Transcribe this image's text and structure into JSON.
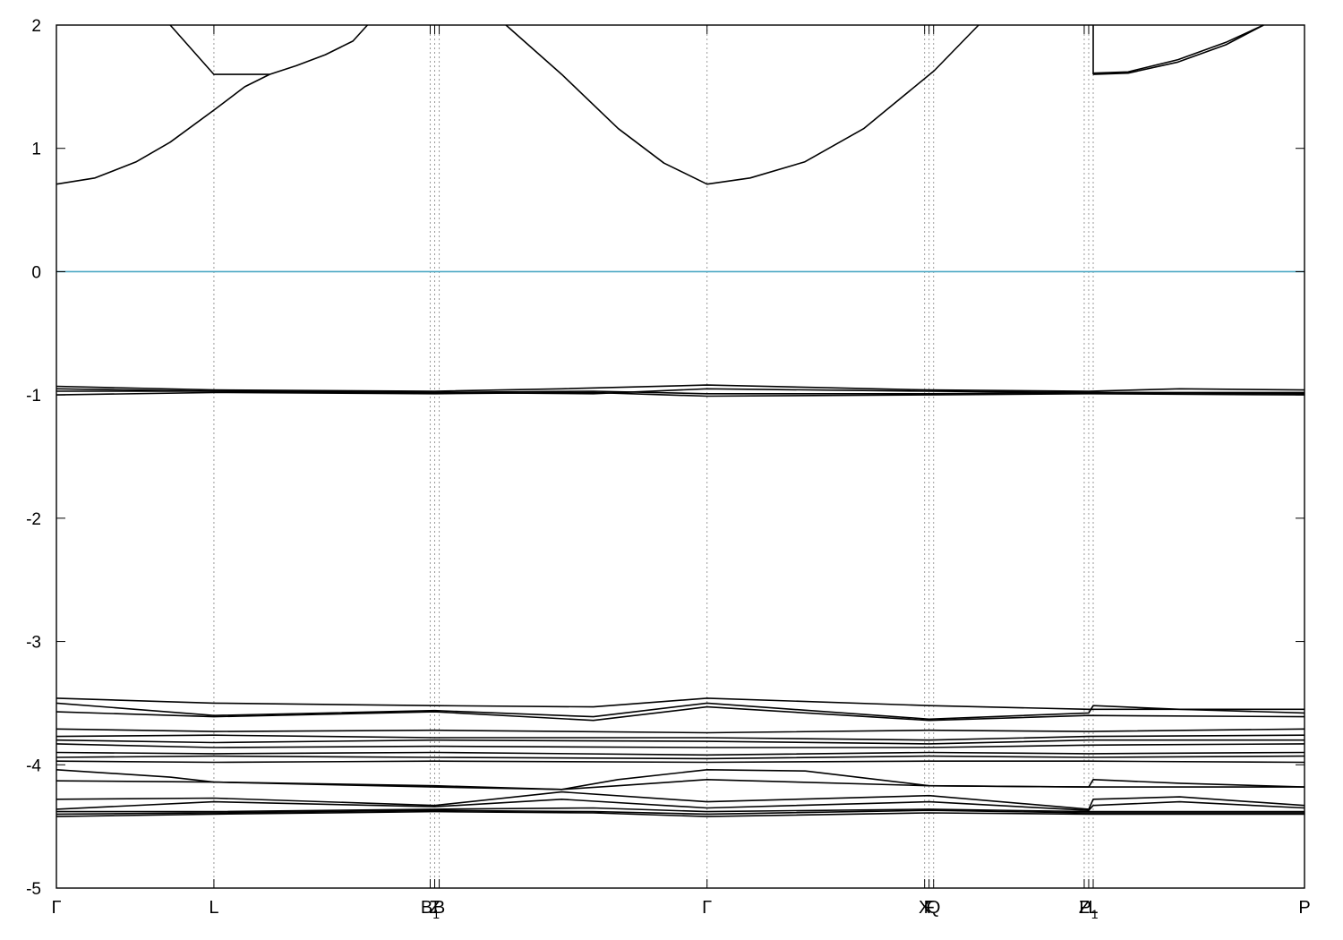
{
  "chart_data": {
    "type": "line",
    "title": "",
    "xlabel": "",
    "ylabel": "",
    "ylim": [
      -5,
      2
    ],
    "y_ticks": [
      2,
      1,
      0,
      -1,
      -2,
      -3,
      -4,
      -5
    ],
    "grid": "dotted vertical lines at high-symmetry k-points",
    "reference_line": {
      "y": 0,
      "color": "#4aa7c4"
    },
    "line_color": "#000000",
    "high_symmetry_points": [
      {
        "label": "Γ",
        "x": 0.0
      },
      {
        "label": "L",
        "x": 0.1262
      },
      {
        "label": "B",
        "sub": "1",
        "x": 0.2995
      },
      {
        "label": "Z",
        "x": 0.3031
      },
      {
        "label": "B",
        "x": 0.3067
      },
      {
        "label": "Γ",
        "x": 0.5213
      },
      {
        "label": "X",
        "x": 0.6956
      },
      {
        "label": "F",
        "x": 0.6992
      },
      {
        "label": "Q",
        "x": 0.7028
      },
      {
        "label": "Z",
        "x": 0.8235
      },
      {
        "label": "P",
        "sub": "1",
        "x": 0.8271
      },
      {
        "label": "L",
        "x": 0.8307
      },
      {
        "label": "P",
        "x": 1.0
      }
    ],
    "series": [
      {
        "values": [
          [
            0.0,
            0.71
          ],
          [
            0.0309,
            0.76
          ],
          [
            0.0637,
            0.89
          ],
          [
            0.0912,
            1.05
          ],
          [
            0.1262,
            1.31
          ],
          [
            0.1509,
            1.5
          ],
          [
            0.1708,
            1.6
          ]
        ]
      },
      {
        "values": [
          [
            0.0912,
            2.0
          ],
          [
            0.1262,
            1.6
          ],
          [
            0.1708,
            1.6
          ],
          [
            0.1922,
            1.67
          ],
          [
            0.2155,
            1.76
          ],
          [
            0.2376,
            1.87
          ],
          [
            0.2492,
            2.0
          ]
        ]
      },
      {
        "values": [
          [
            0.3602,
            2.0
          ],
          [
            0.4049,
            1.6
          ],
          [
            0.4502,
            1.16
          ],
          [
            0.4868,
            0.88
          ],
          [
            0.5213,
            0.71
          ],
          [
            0.5558,
            0.76
          ],
          [
            0.5994,
            0.89
          ],
          [
            0.6468,
            1.16
          ],
          [
            0.7033,
            1.63
          ],
          [
            0.7389,
            2.0
          ]
        ]
      },
      {
        "values": [
          [
            0.8307,
            1.6
          ],
          [
            0.8307,
            2.0
          ]
        ]
      },
      {
        "values": [
          [
            0.8307,
            1.6
          ],
          [
            0.8587,
            1.61
          ],
          [
            0.8987,
            1.7
          ],
          [
            0.937,
            1.84
          ],
          [
            0.9672,
            2.0
          ]
        ]
      },
      {
        "values": [
          [
            0.8307,
            1.61
          ],
          [
            0.8587,
            1.62
          ],
          [
            0.8987,
            1.72
          ],
          [
            0.937,
            1.86
          ],
          [
            0.9672,
            2.0
          ]
        ]
      },
      {
        "values": [
          [
            0.0,
            -0.93
          ],
          [
            0.1262,
            -0.96
          ],
          [
            0.3031,
            -0.97
          ],
          [
            0.4049,
            -0.95
          ],
          [
            0.5213,
            -0.92
          ],
          [
            0.6992,
            -0.96
          ],
          [
            0.8271,
            -0.97
          ],
          [
            0.9,
            -0.95
          ],
          [
            1.0,
            -0.96
          ]
        ]
      },
      {
        "values": [
          [
            0.0,
            -0.95
          ],
          [
            0.1262,
            -0.97
          ],
          [
            0.3031,
            -0.98
          ],
          [
            0.4302,
            -0.99
          ],
          [
            0.5213,
            -0.95
          ],
          [
            0.6992,
            -0.97
          ],
          [
            0.8271,
            -0.98
          ],
          [
            1.0,
            -0.98
          ]
        ]
      },
      {
        "values": [
          [
            0.0,
            -0.97
          ],
          [
            0.1262,
            -0.97
          ],
          [
            0.3031,
            -0.98
          ],
          [
            0.4302,
            -0.97
          ],
          [
            0.5213,
            -0.99
          ],
          [
            0.6992,
            -0.99
          ],
          [
            0.8271,
            -0.98
          ],
          [
            1.0,
            -0.99
          ]
        ]
      },
      {
        "values": [
          [
            0.0,
            -1.0
          ],
          [
            0.1262,
            -0.98
          ],
          [
            0.3031,
            -0.99
          ],
          [
            0.4302,
            -0.98
          ],
          [
            0.5213,
            -1.01
          ],
          [
            0.6992,
            -1.0
          ],
          [
            0.8271,
            -0.99
          ],
          [
            1.0,
            -1.0
          ]
        ]
      },
      {
        "values": [
          [
            0.0,
            -3.46
          ],
          [
            0.1262,
            -3.5
          ],
          [
            0.3031,
            -3.52
          ],
          [
            0.4302,
            -3.53
          ],
          [
            0.5213,
            -3.46
          ],
          [
            0.6992,
            -3.52
          ],
          [
            0.8271,
            -3.55
          ],
          [
            1.0,
            -3.55
          ]
        ]
      },
      {
        "values": [
          [
            0.0,
            -3.5
          ],
          [
            0.1262,
            -3.6
          ],
          [
            0.3031,
            -3.56
          ],
          [
            0.4302,
            -3.61
          ],
          [
            0.5213,
            -3.5
          ],
          [
            0.6992,
            -3.63
          ],
          [
            0.8271,
            -3.58
          ],
          [
            0.8307,
            -3.52
          ],
          [
            0.9,
            -3.55
          ],
          [
            1.0,
            -3.58
          ]
        ]
      },
      {
        "values": [
          [
            0.0,
            -3.57
          ],
          [
            0.1262,
            -3.61
          ],
          [
            0.3031,
            -3.57
          ],
          [
            0.4302,
            -3.64
          ],
          [
            0.5213,
            -3.53
          ],
          [
            0.6992,
            -3.64
          ],
          [
            0.8271,
            -3.6
          ],
          [
            1.0,
            -3.61
          ]
        ]
      },
      {
        "values": [
          [
            0.0,
            -3.71
          ],
          [
            0.1262,
            -3.73
          ],
          [
            0.3031,
            -3.72
          ],
          [
            0.5213,
            -3.74
          ],
          [
            0.6992,
            -3.72
          ],
          [
            0.8271,
            -3.73
          ],
          [
            1.0,
            -3.71
          ]
        ]
      },
      {
        "values": [
          [
            0.0,
            -3.77
          ],
          [
            0.1262,
            -3.76
          ],
          [
            0.3031,
            -3.78
          ],
          [
            0.5213,
            -3.78
          ],
          [
            0.6992,
            -3.8
          ],
          [
            0.8271,
            -3.77
          ],
          [
            1.0,
            -3.76
          ]
        ]
      },
      {
        "values": [
          [
            0.0,
            -3.8
          ],
          [
            0.1262,
            -3.82
          ],
          [
            0.3031,
            -3.8
          ],
          [
            0.5213,
            -3.81
          ],
          [
            0.6992,
            -3.83
          ],
          [
            0.8271,
            -3.8
          ],
          [
            1.0,
            -3.8
          ]
        ]
      },
      {
        "values": [
          [
            0.0,
            -3.83
          ],
          [
            0.1262,
            -3.86
          ],
          [
            0.3031,
            -3.85
          ],
          [
            0.5213,
            -3.86
          ],
          [
            0.6992,
            -3.86
          ],
          [
            0.8271,
            -3.84
          ],
          [
            1.0,
            -3.83
          ]
        ]
      },
      {
        "values": [
          [
            0.0,
            -3.9
          ],
          [
            0.1262,
            -3.91
          ],
          [
            0.3031,
            -3.9
          ],
          [
            0.5213,
            -3.92
          ],
          [
            0.6992,
            -3.9
          ],
          [
            0.8271,
            -3.91
          ],
          [
            1.0,
            -3.9
          ]
        ]
      },
      {
        "values": [
          [
            0.0,
            -3.94
          ],
          [
            0.1262,
            -3.93
          ],
          [
            0.3031,
            -3.94
          ],
          [
            0.5213,
            -3.95
          ],
          [
            0.6992,
            -3.93
          ],
          [
            0.8271,
            -3.94
          ],
          [
            1.0,
            -3.93
          ]
        ]
      },
      {
        "values": [
          [
            0.0,
            -3.97
          ],
          [
            0.1262,
            -3.98
          ],
          [
            0.3031,
            -3.97
          ],
          [
            0.5213,
            -3.98
          ],
          [
            0.6992,
            -3.97
          ],
          [
            0.8271,
            -3.97
          ],
          [
            1.0,
            -3.98
          ]
        ]
      },
      {
        "values": [
          [
            0.0,
            -4.04
          ],
          [
            0.0912,
            -4.1
          ],
          [
            0.1262,
            -4.14
          ],
          [
            0.3031,
            -4.18
          ],
          [
            0.4049,
            -4.2
          ],
          [
            0.45,
            -4.12
          ],
          [
            0.5213,
            -4.04
          ],
          [
            0.6,
            -4.05
          ],
          [
            0.6992,
            -4.17
          ],
          [
            0.8271,
            -4.18
          ],
          [
            0.8307,
            -4.12
          ],
          [
            0.9,
            -4.15
          ],
          [
            1.0,
            -4.18
          ]
        ]
      },
      {
        "values": [
          [
            0.0,
            -4.13
          ],
          [
            0.1262,
            -4.14
          ],
          [
            0.3031,
            -4.17
          ],
          [
            0.4049,
            -4.2
          ],
          [
            0.45,
            -4.17
          ],
          [
            0.5213,
            -4.12
          ],
          [
            0.6992,
            -4.17
          ],
          [
            0.8271,
            -4.18
          ],
          [
            1.0,
            -4.18
          ]
        ]
      },
      {
        "values": [
          [
            0.0,
            -4.28
          ],
          [
            0.1262,
            -4.27
          ],
          [
            0.3031,
            -4.33
          ],
          [
            0.4049,
            -4.22
          ],
          [
            0.5213,
            -4.3
          ],
          [
            0.6992,
            -4.25
          ],
          [
            0.8271,
            -4.36
          ],
          [
            0.8307,
            -4.28
          ],
          [
            0.9,
            -4.26
          ],
          [
            1.0,
            -4.33
          ]
        ]
      },
      {
        "values": [
          [
            0.0,
            -4.36
          ],
          [
            0.1262,
            -4.3
          ],
          [
            0.3031,
            -4.34
          ],
          [
            0.4049,
            -4.28
          ],
          [
            0.5213,
            -4.35
          ],
          [
            0.6992,
            -4.3
          ],
          [
            0.8271,
            -4.37
          ],
          [
            0.8307,
            -4.33
          ],
          [
            0.9,
            -4.3
          ],
          [
            1.0,
            -4.35
          ]
        ]
      },
      {
        "values": [
          [
            0.0,
            -4.38
          ],
          [
            0.1262,
            -4.38
          ],
          [
            0.3031,
            -4.36
          ],
          [
            0.4302,
            -4.35
          ],
          [
            0.5213,
            -4.38
          ],
          [
            0.6992,
            -4.36
          ],
          [
            0.8271,
            -4.38
          ],
          [
            1.0,
            -4.38
          ]
        ]
      },
      {
        "values": [
          [
            0.0,
            -4.4
          ],
          [
            0.1262,
            -4.39
          ],
          [
            0.3031,
            -4.37
          ],
          [
            0.4302,
            -4.38
          ],
          [
            0.5213,
            -4.4
          ],
          [
            0.6992,
            -4.37
          ],
          [
            0.8271,
            -4.39
          ],
          [
            1.0,
            -4.39
          ]
        ]
      },
      {
        "values": [
          [
            0.0,
            -4.42
          ],
          [
            0.1262,
            -4.4
          ],
          [
            0.3031,
            -4.38
          ],
          [
            0.4302,
            -4.39
          ],
          [
            0.5213,
            -4.42
          ],
          [
            0.6992,
            -4.39
          ],
          [
            0.8271,
            -4.4
          ],
          [
            1.0,
            -4.4
          ]
        ]
      }
    ]
  }
}
